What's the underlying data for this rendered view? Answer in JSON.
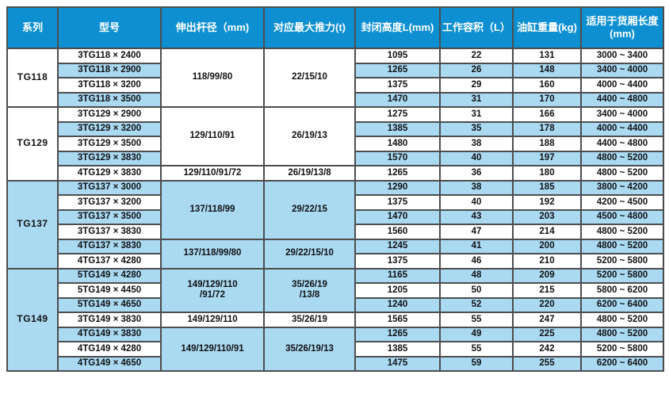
{
  "colors": {
    "header_bg": "#0d8fd1",
    "header_text": "#ffffff",
    "row_alt_bg": "#aad9f2",
    "row_bg": "#ffffff",
    "border": "#4d4d4d",
    "text": "#111111"
  },
  "header": {
    "series": "系列",
    "model": "型号",
    "rod": "伸出杆径（mm)",
    "thrust": "对应最大推力(t)",
    "height": "封闭高度L(mm)",
    "volume": "工作容积（L）",
    "weight": "油缸重量(kg)",
    "length": "适用于货厢长度\n(mm)"
  },
  "g1": {
    "series": "TG118",
    "rod1": "118/99/80",
    "thrust1": "22/15/10",
    "r1": {
      "model": "3TG118 × 2400",
      "h": "1095",
      "v": "22",
      "w": "131",
      "len": "3000 ~ 3400"
    },
    "r2": {
      "model": "3TG118 × 2900",
      "h": "1265",
      "v": "26",
      "w": "148",
      "len": "3400 ~ 4000"
    },
    "r3": {
      "model": "3TG118 × 3200",
      "h": "1375",
      "v": "29",
      "w": "160",
      "len": "4000 ~ 4400"
    },
    "r4": {
      "model": "3TG118 × 3500",
      "h": "1470",
      "v": "31",
      "w": "170",
      "len": "4400 ~ 4800"
    }
  },
  "g2": {
    "series": "TG129",
    "rod1": "129/110/91",
    "thrust1": "26/19/13",
    "rod2": "129/110/91/72",
    "thrust2": "26/19/13/8",
    "r1": {
      "model": "3TG129 × 2900",
      "h": "1275",
      "v": "31",
      "w": "166",
      "len": "3400 ~ 4000"
    },
    "r2": {
      "model": "3TG129 × 3200",
      "h": "1385",
      "v": "35",
      "w": "178",
      "len": "4000 ~ 4400"
    },
    "r3": {
      "model": "3TG129 × 3500",
      "h": "1480",
      "v": "38",
      "w": "188",
      "len": "4400 ~ 4800"
    },
    "r4": {
      "model": "3TG129 × 3830",
      "h": "1570",
      "v": "40",
      "w": "197",
      "len": "4800 ~ 5200"
    },
    "r5": {
      "model": "4TG129 × 3830",
      "h": "1265",
      "v": "36",
      "w": "180",
      "len": "4800 ~ 5200"
    }
  },
  "g3": {
    "series": "TG137",
    "rod1": "137/118/99",
    "thrust1": "29/22/15",
    "rod2": "137/118/99/80",
    "thrust2": "29/22/15/10",
    "r1": {
      "model": "3TG137 × 3000",
      "h": "1290",
      "v": "38",
      "w": "185",
      "len": "3800 ~ 4200"
    },
    "r2": {
      "model": "3TG137 × 3200",
      "h": "1375",
      "v": "40",
      "w": "192",
      "len": "4200 ~ 4500"
    },
    "r3": {
      "model": "3TG137 × 3500",
      "h": "1470",
      "v": "43",
      "w": "203",
      "len": "4500 ~ 4800"
    },
    "r4": {
      "model": "3TG137 × 3830",
      "h": "1560",
      "v": "47",
      "w": "214",
      "len": "4800 ~ 5200"
    },
    "r5": {
      "model": "4TG137 × 3830",
      "h": "1245",
      "v": "41",
      "w": "200",
      "len": "4800 ~ 5200"
    },
    "r6": {
      "model": "4TG137 × 4280",
      "h": "1375",
      "v": "46",
      "w": "210",
      "len": "5200 ~ 5800"
    }
  },
  "g4": {
    "series": "TG149",
    "rod1": "149/129/110\n/91/72",
    "thrust1": "35/26/19\n/13/8",
    "rod2": "149/129/110",
    "thrust2": "35/26/19",
    "rod3": "149/129/110/91",
    "thrust3": "35/26/19/13",
    "r1": {
      "model": "5TG149 × 4280",
      "h": "1165",
      "v": "48",
      "w": "209",
      "len": "5200 ~ 5800"
    },
    "r2": {
      "model": "5TG149 × 4450",
      "h": "1205",
      "v": "50",
      "w": "215",
      "len": "5800 ~ 6200"
    },
    "r3": {
      "model": "5TG149 × 4650",
      "h": "1240",
      "v": "52",
      "w": "220",
      "len": "6200 ~ 6400"
    },
    "r4": {
      "model": "3TG149 × 3830",
      "h": "1565",
      "v": "55",
      "w": "247",
      "len": "4800 ~ 5200"
    },
    "r5": {
      "model": "4TG149 × 3830",
      "h": "1265",
      "v": "49",
      "w": "225",
      "len": "4800 ~ 5200"
    },
    "r6": {
      "model": "4TG149 × 4280",
      "h": "1385",
      "v": "55",
      "w": "242",
      "len": "5200 ~ 5800"
    },
    "r7": {
      "model": "4TG149 × 4650",
      "h": "1475",
      "v": "59",
      "w": "255",
      "len": "6200 ~ 6400"
    }
  }
}
